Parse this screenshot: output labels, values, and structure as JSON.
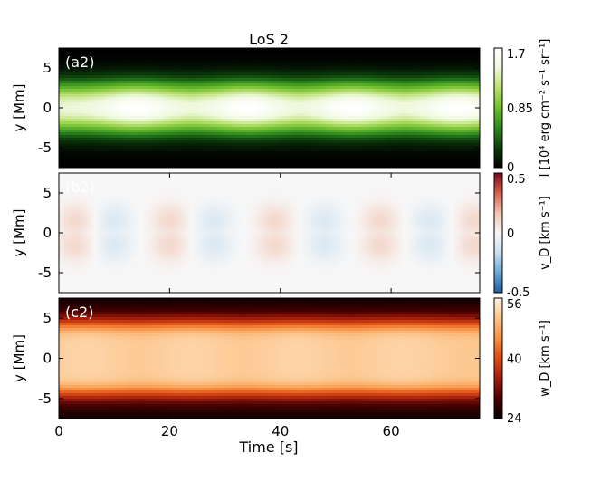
{
  "chart_data": [
    {
      "type": "heatmap",
      "panel_label": "(a2)",
      "title": "LoS 2",
      "ylabel": "y [Mm]",
      "xlim": [
        0,
        76
      ],
      "ylim": [
        -7.5,
        7.5
      ],
      "yticks": [
        "5",
        "0",
        "-5"
      ],
      "colormap": [
        "#000000",
        "#0b3d0b",
        "#2f8a1f",
        "#6fbf2c",
        "#b9e070",
        "#eef8dc",
        "#ffffff"
      ],
      "colorbar": {
        "ticks": [
          "1.7",
          "0.85",
          "0"
        ],
        "label": "I [10⁴ erg cm⁻² s⁻¹ sr⁻¹]",
        "range": [
          0,
          1.7
        ]
      },
      "field": {
        "center_y": 0,
        "half_width": 3.2,
        "base_max": 1.4,
        "peaks_x": [
          14,
          34,
          53,
          72
        ],
        "peak_boost": 0.3
      }
    },
    {
      "type": "heatmap",
      "panel_label": "(b2)",
      "ylabel": "y [Mm]",
      "xlim": [
        0,
        76
      ],
      "ylim": [
        -7.5,
        7.5
      ],
      "yticks": [
        "5",
        "0",
        "-5"
      ],
      "colormap": [
        "#1f5f9e",
        "#6ea6d4",
        "#c9dff0",
        "#f7f7f7",
        "#f2c4b0",
        "#d6604d",
        "#7a0a1e"
      ],
      "colorbar": {
        "ticks": [
          "0.5",
          "0",
          "-0.5"
        ],
        "label": "v_D [km s⁻¹]",
        "range": [
          -0.5,
          0.5
        ]
      },
      "field": {
        "bands_y": [
          1.5,
          -1.5
        ],
        "band_halfwidth": 1.5,
        "red_x": [
          3,
          20,
          39,
          58,
          75
        ],
        "blue_x": [
          10,
          28,
          48,
          67
        ],
        "amplitude": 0.1
      }
    },
    {
      "type": "heatmap",
      "panel_label": "(c2)",
      "ylabel": "y [Mm]",
      "xlabel": "Time [s]",
      "xlim": [
        0,
        76
      ],
      "ylim": [
        -7.5,
        7.5
      ],
      "xticks": [
        "0",
        "20",
        "40",
        "60"
      ],
      "yticks": [
        "5",
        "0",
        "-5"
      ],
      "colormap": [
        "#000000",
        "#4a0000",
        "#a01d0d",
        "#dd4a14",
        "#f78f3f",
        "#fcc58c",
        "#fff0dd"
      ],
      "colorbar": {
        "ticks": [
          "56",
          "40",
          "24"
        ],
        "label": "w_D [km s⁻¹]",
        "range": [
          24,
          56
        ]
      },
      "field": {
        "base": 24,
        "core": 51,
        "half_width": 4.6,
        "ripple_x": [
          5,
          24,
          43,
          62
        ],
        "ripple": 1.5
      }
    }
  ]
}
